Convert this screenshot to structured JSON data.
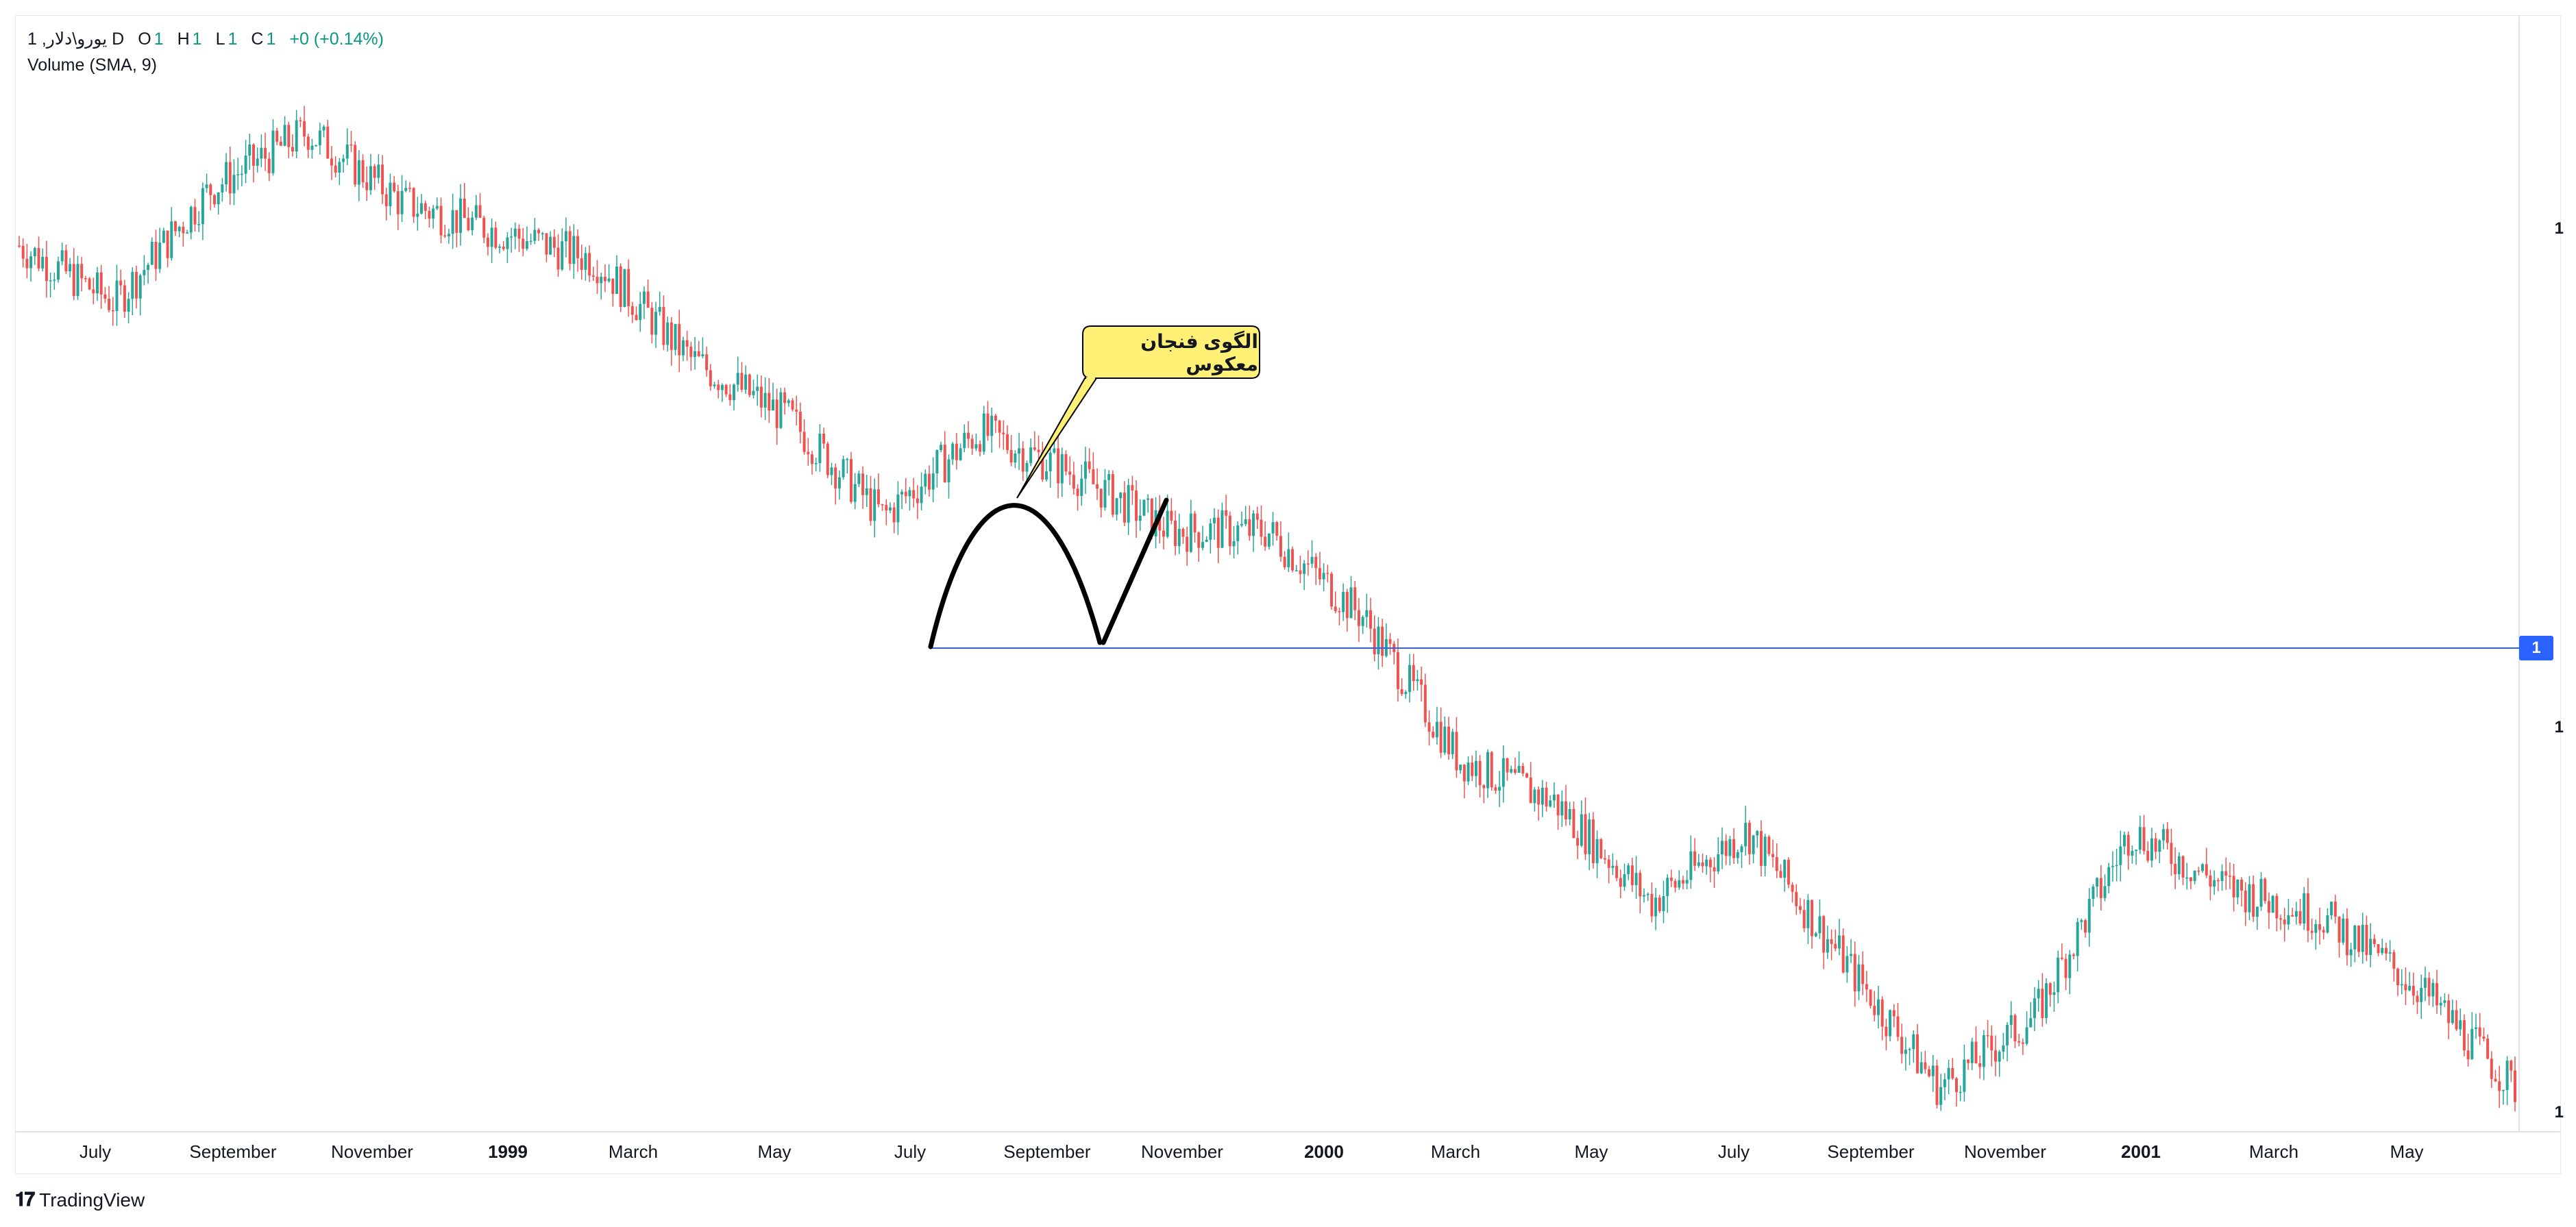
{
  "legend": {
    "symbol": "1 ,یورو\\دلار D",
    "open_label": "O",
    "open_value": "1",
    "high_label": "H",
    "high_value": "1",
    "low_label": "L",
    "low_value": "1",
    "close_label": "C",
    "close_value": "1",
    "change": "+0 (+0.14%)",
    "volume": "Volume (SMA, 9)"
  },
  "price_axis": {
    "labels": [
      "1",
      "1",
      "1",
      "1"
    ],
    "current_badge": "1"
  },
  "time_axis": {
    "labels": [
      {
        "text": "July",
        "bold": false
      },
      {
        "text": "September",
        "bold": false
      },
      {
        "text": "November",
        "bold": false
      },
      {
        "text": "1999",
        "bold": true
      },
      {
        "text": "March",
        "bold": false
      },
      {
        "text": "May",
        "bold": false
      },
      {
        "text": "July",
        "bold": false
      },
      {
        "text": "September",
        "bold": false
      },
      {
        "text": "November",
        "bold": false
      },
      {
        "text": "2000",
        "bold": true
      },
      {
        "text": "March",
        "bold": false
      },
      {
        "text": "May",
        "bold": false
      },
      {
        "text": "July",
        "bold": false
      },
      {
        "text": "September",
        "bold": false
      },
      {
        "text": "November",
        "bold": false
      },
      {
        "text": "2001",
        "bold": true
      },
      {
        "text": "March",
        "bold": false
      },
      {
        "text": "May",
        "bold": false
      }
    ]
  },
  "annotation": {
    "text": "الگوی فنجان معکوس",
    "callout_fill": "#fff176",
    "stroke": "#000000"
  },
  "colors": {
    "up": "#26a69a",
    "down": "#ef5350",
    "horizontal_line": "#2962ff",
    "badge": "#2962ff"
  },
  "brand": {
    "name": "TradingView"
  },
  "chart_data": {
    "type": "candlestick",
    "x": [
      "1998-06",
      "1998-07",
      "1998-09",
      "1998-10",
      "1998-11",
      "1999-01",
      "1999-02",
      "1999-03",
      "1999-05",
      "1999-07",
      "1999-08",
      "1999-09",
      "1999-10",
      "1999-11",
      "2000-01",
      "2000-02",
      "2000-03",
      "2000-05",
      "2000-07",
      "2000-09",
      "2000-11",
      "2001-01",
      "2001-02",
      "2001-03",
      "2001-04",
      "2001-05",
      "2001-06"
    ],
    "close_relative": [
      0.92,
      0.88,
      0.96,
      1.0,
      0.95,
      0.93,
      0.91,
      0.84,
      0.8,
      0.73,
      0.79,
      0.76,
      0.72,
      0.72,
      0.66,
      0.56,
      0.53,
      0.46,
      0.51,
      0.42,
      0.33,
      0.38,
      0.51,
      0.47,
      0.45,
      0.4,
      0.33
    ],
    "ylabel": "",
    "xlabel": "",
    "grid": false
  }
}
